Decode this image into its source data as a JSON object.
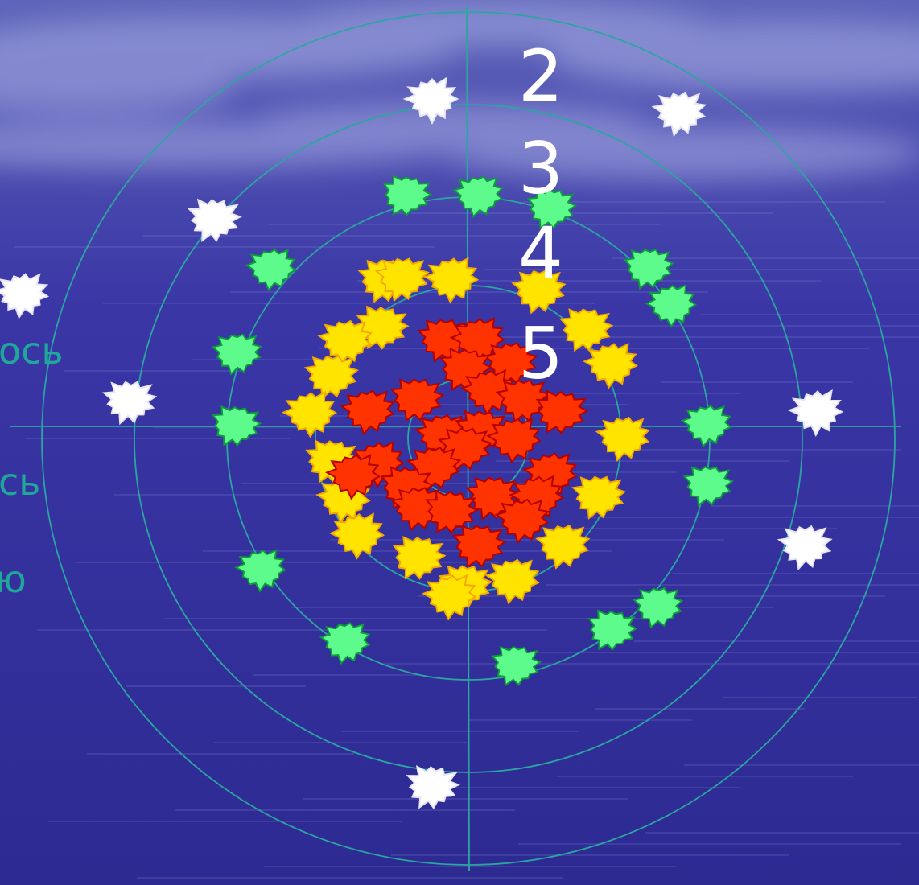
{
  "ring_labels": [
    "2",
    "3",
    "4",
    "5"
  ],
  "side_labels": [
    "ось",
    "сь",
    "ю"
  ],
  "colors": {
    "background_top": "#5d63b8",
    "background_mid": "#3a36a6",
    "background_bottom": "#2d2a92",
    "cloud": "#aab0e6",
    "grid_line": "#2aa6a0",
    "ring_label_text": "#ffffff",
    "side_label_text": "#1fa79a",
    "white_star_fill": "#ffffff",
    "white_star_stroke": "#e6e6f4",
    "green_star_fill": "#5cfb8c",
    "green_star_stroke": "#0f9a3b",
    "yellow_star_fill": "#ffe400",
    "yellow_star_stroke": "#f4a900",
    "red_star_fill": "#ff3300",
    "red_star_stroke": "#b40000"
  },
  "icons": {
    "target": "target-rings-icon",
    "star": "starburst-icon"
  }
}
